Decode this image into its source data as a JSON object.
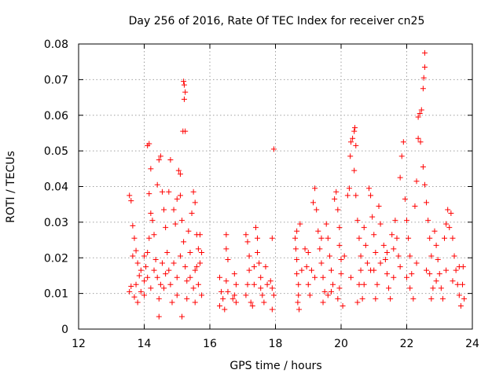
{
  "chart_data": {
    "type": "scatter",
    "title": "Day 256 of 2016, Rate Of TEC Index for receiver cn25",
    "xlabel": "GPS time / hours",
    "ylabel": "ROTI / TECUs",
    "xlim": [
      12,
      24
    ],
    "ylim": [
      0,
      0.08
    ],
    "xticks": [
      12,
      14,
      16,
      18,
      20,
      22,
      24
    ],
    "xtick_labels": [
      "12",
      "14",
      "16",
      "18",
      "20",
      "22",
      "24"
    ],
    "yticks": [
      0,
      0.01,
      0.02,
      0.03,
      0.04,
      0.05,
      0.06,
      0.07,
      0.08
    ],
    "ytick_labels": [
      "0",
      "0.01",
      "0.02",
      "0.03",
      "0.04",
      "0.05",
      "0.06",
      "0.07",
      "0.08"
    ],
    "grid": true,
    "marker": "+",
    "color": "#ff0000",
    "series": [
      {
        "name": "ROTI",
        "points": [
          [
            13.55,
            0.0375
          ],
          [
            13.6,
            0.036
          ],
          [
            13.65,
            0.029
          ],
          [
            13.7,
            0.0255
          ],
          [
            13.75,
            0.022
          ],
          [
            13.8,
            0.0185
          ],
          [
            13.85,
            0.015
          ],
          [
            13.6,
            0.012
          ],
          [
            13.7,
            0.009
          ],
          [
            13.8,
            0.0075
          ],
          [
            13.9,
            0.0105
          ],
          [
            14.0,
            0.0135
          ],
          [
            14.05,
            0.0175
          ],
          [
            14.1,
            0.0215
          ],
          [
            14.15,
            0.0255
          ],
          [
            14.2,
            0.0325
          ],
          [
            14.15,
            0.038
          ],
          [
            14.2,
            0.045
          ],
          [
            14.15,
            0.052
          ],
          [
            14.1,
            0.0515
          ],
          [
            14.25,
            0.0305
          ],
          [
            14.3,
            0.0265
          ],
          [
            14.35,
            0.0195
          ],
          [
            14.4,
            0.0145
          ],
          [
            14.45,
            0.0085
          ],
          [
            14.45,
            0.0035
          ],
          [
            14.5,
            0.0125
          ],
          [
            14.4,
            0.0405
          ],
          [
            14.45,
            0.0475
          ],
          [
            14.5,
            0.0485
          ],
          [
            14.55,
            0.0385
          ],
          [
            14.6,
            0.0335
          ],
          [
            14.65,
            0.0285
          ],
          [
            14.7,
            0.0215
          ],
          [
            14.75,
            0.0165
          ],
          [
            14.8,
            0.0125
          ],
          [
            14.85,
            0.0075
          ],
          [
            14.75,
            0.0385
          ],
          [
            14.8,
            0.0475
          ],
          [
            14.9,
            0.0335
          ],
          [
            14.95,
            0.0295
          ],
          [
            15.0,
            0.0365
          ],
          [
            15.05,
            0.0445
          ],
          [
            15.1,
            0.0435
          ],
          [
            15.1,
            0.0375
          ],
          [
            15.15,
            0.0305
          ],
          [
            15.2,
            0.0695
          ],
          [
            15.22,
            0.0685
          ],
          [
            15.25,
            0.0665
          ],
          [
            15.22,
            0.0645
          ],
          [
            15.18,
            0.0555
          ],
          [
            15.25,
            0.0555
          ],
          [
            15.2,
            0.0245
          ],
          [
            15.25,
            0.0175
          ],
          [
            15.3,
            0.0135
          ],
          [
            15.3,
            0.0085
          ],
          [
            15.15,
            0.0035
          ],
          [
            15.35,
            0.0275
          ],
          [
            15.4,
            0.0215
          ],
          [
            15.45,
            0.0325
          ],
          [
            15.5,
            0.0385
          ],
          [
            15.55,
            0.0355
          ],
          [
            15.6,
            0.0265
          ],
          [
            15.65,
            0.0225
          ],
          [
            15.7,
            0.0185
          ],
          [
            15.65,
            0.0125
          ],
          [
            15.75,
            0.0095
          ],
          [
            15.55,
            0.0075
          ],
          [
            15.7,
            0.0265
          ],
          [
            15.75,
            0.0215
          ],
          [
            13.65,
            0.0205
          ],
          [
            13.75,
            0.0125
          ],
          [
            13.9,
            0.0165
          ],
          [
            14.0,
            0.0205
          ],
          [
            14.1,
            0.0145
          ],
          [
            14.2,
            0.0115
          ],
          [
            14.3,
            0.0165
          ],
          [
            14.55,
            0.0185
          ],
          [
            14.65,
            0.0155
          ],
          [
            14.9,
            0.0185
          ],
          [
            15.0,
            0.0145
          ],
          [
            15.1,
            0.0205
          ],
          [
            15.4,
            0.0145
          ],
          [
            15.5,
            0.0115
          ],
          [
            15.6,
            0.0175
          ],
          [
            14.0,
            0.0095
          ],
          [
            14.6,
            0.0115
          ],
          [
            15.0,
            0.0095
          ],
          [
            13.55,
            0.0105
          ],
          [
            15.55,
            0.0165
          ],
          [
            16.3,
            0.0145
          ],
          [
            16.35,
            0.0105
          ],
          [
            16.4,
            0.0085
          ],
          [
            16.3,
            0.0065
          ],
          [
            16.45,
            0.0055
          ],
          [
            16.5,
            0.0265
          ],
          [
            16.5,
            0.0225
          ],
          [
            16.55,
            0.0195
          ],
          [
            16.5,
            0.0135
          ],
          [
            16.55,
            0.0105
          ],
          [
            16.75,
            0.0155
          ],
          [
            16.8,
            0.0125
          ],
          [
            16.75,
            0.0095
          ],
          [
            16.8,
            0.0075
          ],
          [
            16.7,
            0.0085
          ],
          [
            17.1,
            0.0265
          ],
          [
            17.15,
            0.0245
          ],
          [
            17.2,
            0.0205
          ],
          [
            17.2,
            0.0165
          ],
          [
            17.15,
            0.0125
          ],
          [
            17.1,
            0.0095
          ],
          [
            17.25,
            0.0075
          ],
          [
            17.3,
            0.0065
          ],
          [
            17.35,
            0.0125
          ],
          [
            17.35,
            0.0175
          ],
          [
            17.4,
            0.0285
          ],
          [
            17.45,
            0.0255
          ],
          [
            17.45,
            0.0215
          ],
          [
            17.5,
            0.0185
          ],
          [
            17.55,
            0.0145
          ],
          [
            17.55,
            0.0115
          ],
          [
            17.6,
            0.0095
          ],
          [
            17.65,
            0.0075
          ],
          [
            17.7,
            0.0175
          ],
          [
            17.75,
            0.0125
          ],
          [
            17.9,
            0.0255
          ],
          [
            17.85,
            0.0135
          ],
          [
            17.9,
            0.0115
          ],
          [
            17.95,
            0.0095
          ],
          [
            17.9,
            0.0055
          ],
          [
            17.95,
            0.0505
          ],
          [
            18.6,
            0.0255
          ],
          [
            18.62,
            0.0225
          ],
          [
            18.65,
            0.0195
          ],
          [
            18.65,
            0.0155
          ],
          [
            18.7,
            0.0125
          ],
          [
            18.7,
            0.0095
          ],
          [
            18.68,
            0.0075
          ],
          [
            18.72,
            0.0055
          ],
          [
            18.65,
            0.0275
          ],
          [
            18.75,
            0.0295
          ],
          [
            18.9,
            0.0225
          ],
          [
            18.95,
            0.0175
          ],
          [
            19.0,
            0.0125
          ],
          [
            19.05,
            0.0095
          ],
          [
            19.1,
            0.0165
          ],
          [
            19.15,
            0.0355
          ],
          [
            19.2,
            0.0395
          ],
          [
            19.25,
            0.0335
          ],
          [
            19.3,
            0.0275
          ],
          [
            19.35,
            0.0225
          ],
          [
            19.4,
            0.0185
          ],
          [
            19.45,
            0.0145
          ],
          [
            19.5,
            0.0105
          ],
          [
            19.45,
            0.0075
          ],
          [
            19.55,
            0.0295
          ],
          [
            19.6,
            0.0255
          ],
          [
            19.65,
            0.0205
          ],
          [
            19.7,
            0.0165
          ],
          [
            19.75,
            0.0125
          ],
          [
            19.6,
            0.0095
          ],
          [
            19.8,
            0.0365
          ],
          [
            19.85,
            0.0385
          ],
          [
            19.9,
            0.0335
          ],
          [
            19.95,
            0.0285
          ],
          [
            19.95,
            0.0235
          ],
          [
            20.0,
            0.0195
          ],
          [
            20.0,
            0.0155
          ],
          [
            19.95,
            0.0115
          ],
          [
            19.9,
            0.0085
          ],
          [
            20.05,
            0.0065
          ],
          [
            20.2,
            0.0375
          ],
          [
            20.25,
            0.0395
          ],
          [
            20.28,
            0.0485
          ],
          [
            20.3,
            0.0525
          ],
          [
            20.35,
            0.0535
          ],
          [
            20.4,
            0.0555
          ],
          [
            20.42,
            0.0565
          ],
          [
            20.45,
            0.0515
          ],
          [
            20.4,
            0.0445
          ],
          [
            20.45,
            0.0375
          ],
          [
            20.5,
            0.0305
          ],
          [
            20.55,
            0.0255
          ],
          [
            20.6,
            0.0205
          ],
          [
            20.6,
            0.0165
          ],
          [
            20.55,
            0.0125
          ],
          [
            20.65,
            0.0085
          ],
          [
            20.5,
            0.0075
          ],
          [
            20.7,
            0.0285
          ],
          [
            20.75,
            0.0235
          ],
          [
            20.8,
            0.0185
          ],
          [
            20.85,
            0.0395
          ],
          [
            20.9,
            0.0375
          ],
          [
            20.95,
            0.0315
          ],
          [
            21.0,
            0.0265
          ],
          [
            21.05,
            0.0215
          ],
          [
            21.0,
            0.0165
          ],
          [
            21.1,
            0.0125
          ],
          [
            21.05,
            0.0085
          ],
          [
            21.15,
            0.0345
          ],
          [
            21.2,
            0.0295
          ],
          [
            21.3,
            0.0235
          ],
          [
            21.35,
            0.0195
          ],
          [
            21.4,
            0.0155
          ],
          [
            21.45,
            0.0115
          ],
          [
            21.5,
            0.0085
          ],
          [
            21.55,
            0.0265
          ],
          [
            21.6,
            0.0225
          ],
          [
            21.65,
            0.0305
          ],
          [
            21.7,
            0.0255
          ],
          [
            21.75,
            0.0205
          ],
          [
            21.8,
            0.0425
          ],
          [
            21.85,
            0.0485
          ],
          [
            21.9,
            0.0525
          ],
          [
            21.95,
            0.0365
          ],
          [
            22.0,
            0.0305
          ],
          [
            22.05,
            0.0255
          ],
          [
            22.1,
            0.0205
          ],
          [
            22.15,
            0.0155
          ],
          [
            22.1,
            0.0115
          ],
          [
            22.2,
            0.0085
          ],
          [
            22.25,
            0.0345
          ],
          [
            22.3,
            0.0415
          ],
          [
            22.35,
            0.0535
          ],
          [
            22.35,
            0.0595
          ],
          [
            22.4,
            0.0605
          ],
          [
            22.45,
            0.0615
          ],
          [
            22.42,
            0.0525
          ],
          [
            22.5,
            0.0675
          ],
          [
            22.52,
            0.0705
          ],
          [
            22.55,
            0.0735
          ],
          [
            22.55,
            0.0775
          ],
          [
            22.5,
            0.0455
          ],
          [
            22.55,
            0.0405
          ],
          [
            22.6,
            0.0355
          ],
          [
            22.65,
            0.0305
          ],
          [
            22.7,
            0.0255
          ],
          [
            22.75,
            0.0205
          ],
          [
            22.7,
            0.0155
          ],
          [
            22.8,
            0.0115
          ],
          [
            22.75,
            0.0085
          ],
          [
            22.85,
            0.0275
          ],
          [
            22.9,
            0.0235
          ],
          [
            22.95,
            0.0195
          ],
          [
            23.0,
            0.0155
          ],
          [
            23.05,
            0.0115
          ],
          [
            23.1,
            0.0085
          ],
          [
            23.15,
            0.0255
          ],
          [
            23.2,
            0.0295
          ],
          [
            23.25,
            0.0335
          ],
          [
            23.3,
            0.0285
          ],
          [
            23.35,
            0.0325
          ],
          [
            23.4,
            0.0255
          ],
          [
            23.45,
            0.0205
          ],
          [
            23.5,
            0.0165
          ],
          [
            23.55,
            0.0125
          ],
          [
            23.6,
            0.0095
          ],
          [
            23.65,
            0.0065
          ],
          [
            23.7,
            0.0125
          ],
          [
            23.72,
            0.0175
          ],
          [
            23.75,
            0.0085
          ],
          [
            18.8,
            0.0165
          ],
          [
            19.0,
            0.0215
          ],
          [
            19.2,
            0.0145
          ],
          [
            19.4,
            0.0255
          ],
          [
            19.7,
            0.0105
          ],
          [
            20.1,
            0.0205
          ],
          [
            20.3,
            0.0145
          ],
          [
            20.7,
            0.0125
          ],
          [
            20.9,
            0.0165
          ],
          [
            21.2,
            0.0185
          ],
          [
            21.4,
            0.0215
          ],
          [
            21.6,
            0.0145
          ],
          [
            21.8,
            0.0175
          ],
          [
            22.0,
            0.0145
          ],
          [
            22.3,
            0.0185
          ],
          [
            22.6,
            0.0165
          ],
          [
            22.9,
            0.0135
          ],
          [
            23.2,
            0.0165
          ],
          [
            23.4,
            0.0135
          ],
          [
            23.6,
            0.0175
          ]
        ]
      }
    ]
  }
}
